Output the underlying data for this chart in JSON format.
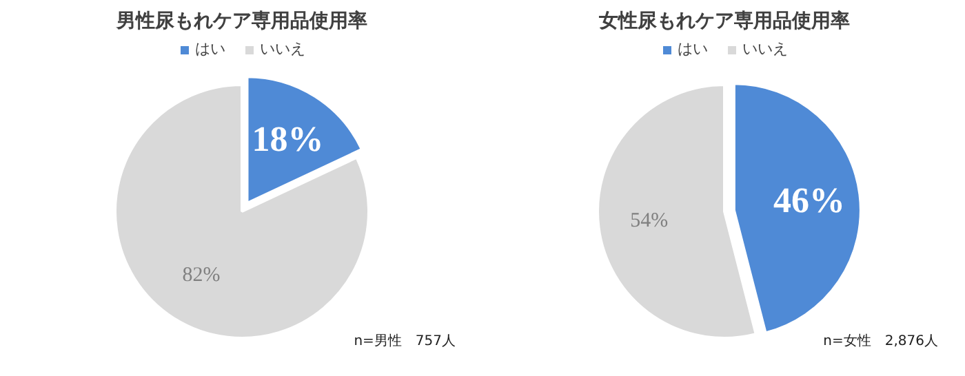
{
  "chart_data": [
    {
      "type": "pie",
      "title": "男性尿もれケア専用品使用率",
      "categories": [
        "はい",
        "いいえ"
      ],
      "values": [
        18,
        82
      ],
      "colors": [
        "#4f8ad6",
        "#d9d9d9"
      ],
      "value_labels": [
        "18%",
        "82%"
      ],
      "legend": "top",
      "annotations": [
        "n=男性　757人"
      ]
    },
    {
      "type": "pie",
      "title": "女性尿もれケア専用品使用率",
      "categories": [
        "はい",
        "いいえ"
      ],
      "values": [
        46,
        54
      ],
      "colors": [
        "#4f8ad6",
        "#d9d9d9"
      ],
      "value_labels": [
        "46%",
        "54%"
      ],
      "legend": "top",
      "annotations": [
        "n=女性　2,876人"
      ]
    }
  ]
}
